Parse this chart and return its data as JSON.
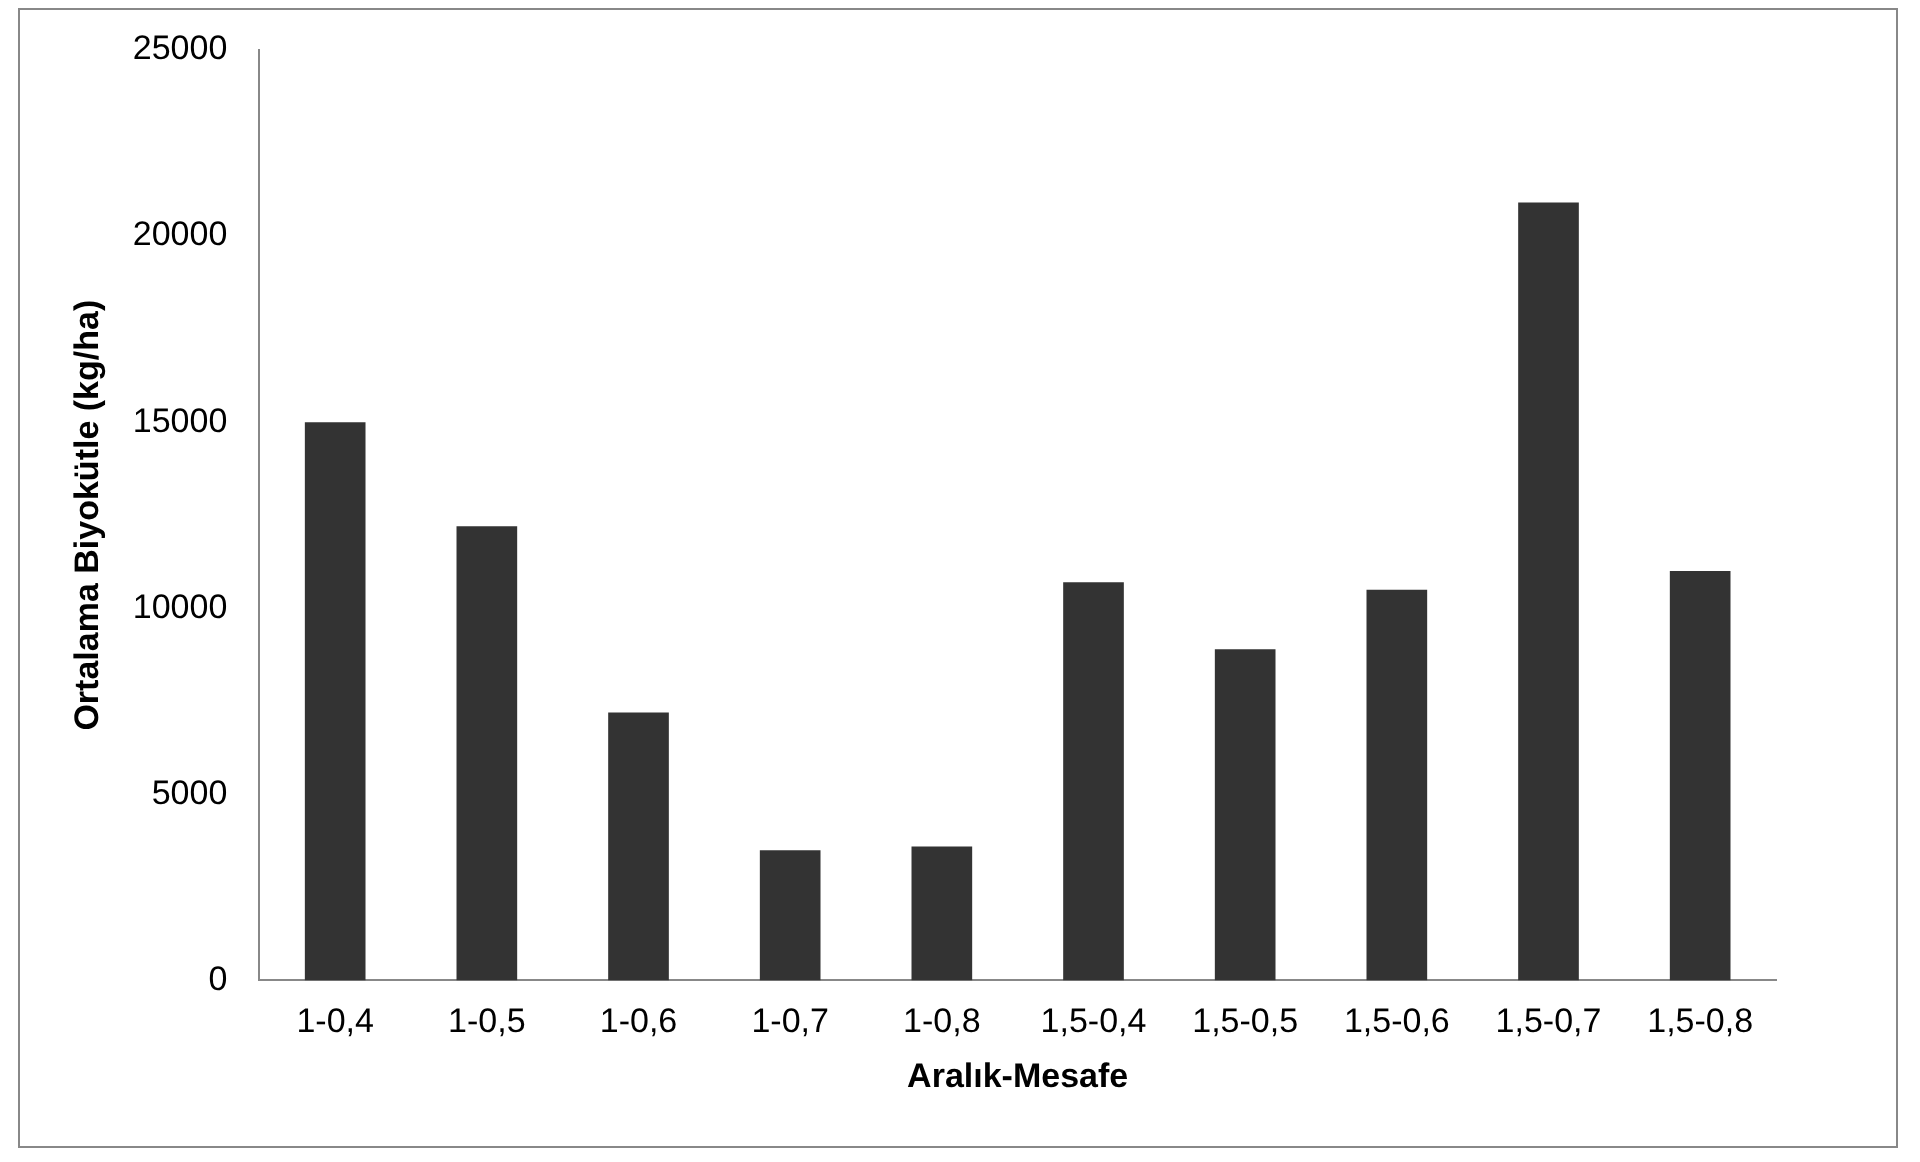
{
  "chart_data": {
    "type": "bar",
    "xlabel": "Aralık-Mesafe",
    "ylabel": "Ortalama Biyokütle (kg/ha)",
    "categories": [
      "1-0,4",
      "1-0,5",
      "1-0,6",
      "1-0,7",
      "1-0,8",
      "1,5-0,4",
      "1,5-0,5",
      "1,5-0,6",
      "1,5-0,7",
      "1,5-0,8"
    ],
    "values": [
      15000,
      12200,
      7200,
      3500,
      3600,
      10700,
      8900,
      10500,
      20900,
      11000
    ],
    "color": "#333333",
    "ylim": [
      0,
      25000
    ],
    "yticks": [
      0,
      5000,
      10000,
      15000,
      20000,
      25000
    ],
    "grid": false,
    "legend": false
  }
}
